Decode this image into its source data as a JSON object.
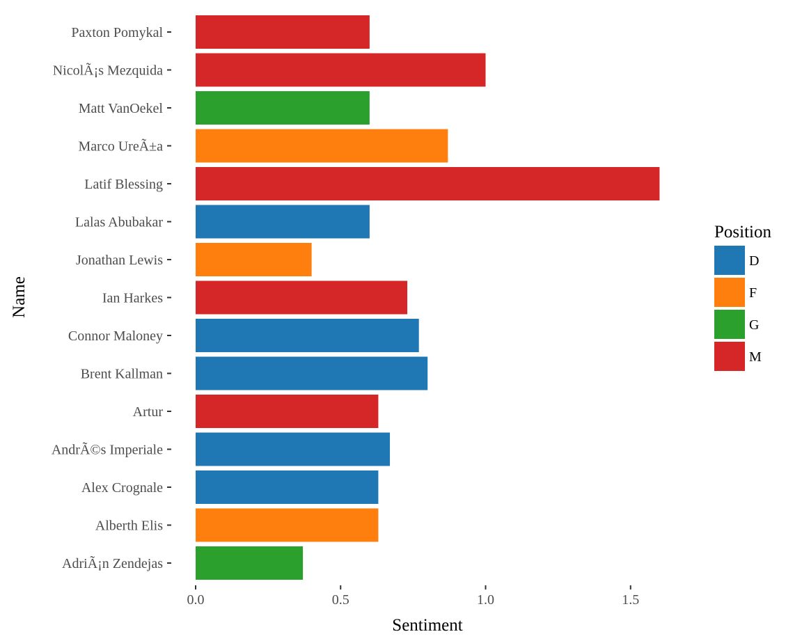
{
  "chart_data": {
    "type": "bar",
    "orientation": "horizontal",
    "xlabel": "Sentiment",
    "ylabel": "Name",
    "xlim": [
      0,
      1.8
    ],
    "x_ticks": [
      "0.0",
      "0.5",
      "1.0",
      "1.5"
    ],
    "grid": false,
    "legend": {
      "title": "Position",
      "placement": "right",
      "entries": [
        {
          "label": "D",
          "color": "#1f77b4"
        },
        {
          "label": "F",
          "color": "#ff7f0e"
        },
        {
          "label": "G",
          "color": "#2ca02c"
        },
        {
          "label": "M",
          "color": "#d62728"
        }
      ]
    },
    "categories": [
      "Paxton Pomykal",
      "NicolÃ¡s Mezquida",
      "Matt VanOekel",
      "Marco UreÃ±a",
      "Latif Blessing",
      "Lalas Abubakar",
      "Jonathan Lewis",
      "Ian Harkes",
      "Connor Maloney",
      "Brent Kallman",
      "Artur",
      "AndrÃ©s Imperiale",
      "Alex Crognale",
      "Alberth Elis",
      "AdriÃ¡n Zendejas"
    ],
    "values": [
      0.6,
      1.0,
      0.6,
      0.87,
      1.6,
      0.6,
      0.4,
      0.73,
      0.77,
      0.8,
      0.63,
      0.67,
      0.63,
      0.63,
      0.37
    ],
    "position": [
      "M",
      "M",
      "G",
      "F",
      "M",
      "D",
      "F",
      "M",
      "D",
      "D",
      "M",
      "D",
      "D",
      "F",
      "G"
    ]
  }
}
